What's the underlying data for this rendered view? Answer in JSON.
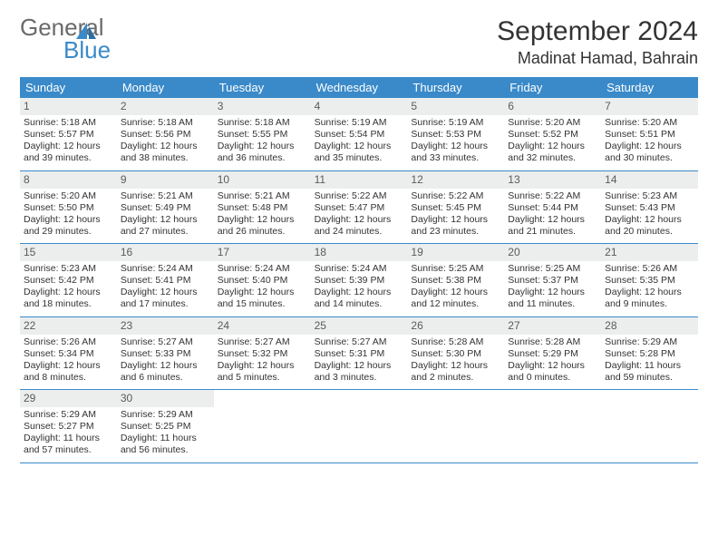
{
  "brand": {
    "line1": "General",
    "line2": "Blue"
  },
  "title": "September 2024",
  "location": "Madinat Hamad, Bahrain",
  "colors": {
    "header_bg": "#3a8ac9",
    "header_fg": "#ffffff",
    "daynum_bg": "#eceeee",
    "text": "#333333",
    "logo_gray": "#6a6a6a",
    "logo_blue": "#3a8ac9",
    "row_border": "#3a8ac9"
  },
  "dow": [
    "Sunday",
    "Monday",
    "Tuesday",
    "Wednesday",
    "Thursday",
    "Friday",
    "Saturday"
  ],
  "days": [
    {
      "n": "1",
      "sunrise": "5:18 AM",
      "sunset": "5:57 PM",
      "daylight": "12 hours and 39 minutes."
    },
    {
      "n": "2",
      "sunrise": "5:18 AM",
      "sunset": "5:56 PM",
      "daylight": "12 hours and 38 minutes."
    },
    {
      "n": "3",
      "sunrise": "5:18 AM",
      "sunset": "5:55 PM",
      "daylight": "12 hours and 36 minutes."
    },
    {
      "n": "4",
      "sunrise": "5:19 AM",
      "sunset": "5:54 PM",
      "daylight": "12 hours and 35 minutes."
    },
    {
      "n": "5",
      "sunrise": "5:19 AM",
      "sunset": "5:53 PM",
      "daylight": "12 hours and 33 minutes."
    },
    {
      "n": "6",
      "sunrise": "5:20 AM",
      "sunset": "5:52 PM",
      "daylight": "12 hours and 32 minutes."
    },
    {
      "n": "7",
      "sunrise": "5:20 AM",
      "sunset": "5:51 PM",
      "daylight": "12 hours and 30 minutes."
    },
    {
      "n": "8",
      "sunrise": "5:20 AM",
      "sunset": "5:50 PM",
      "daylight": "12 hours and 29 minutes."
    },
    {
      "n": "9",
      "sunrise": "5:21 AM",
      "sunset": "5:49 PM",
      "daylight": "12 hours and 27 minutes."
    },
    {
      "n": "10",
      "sunrise": "5:21 AM",
      "sunset": "5:48 PM",
      "daylight": "12 hours and 26 minutes."
    },
    {
      "n": "11",
      "sunrise": "5:22 AM",
      "sunset": "5:47 PM",
      "daylight": "12 hours and 24 minutes."
    },
    {
      "n": "12",
      "sunrise": "5:22 AM",
      "sunset": "5:45 PM",
      "daylight": "12 hours and 23 minutes."
    },
    {
      "n": "13",
      "sunrise": "5:22 AM",
      "sunset": "5:44 PM",
      "daylight": "12 hours and 21 minutes."
    },
    {
      "n": "14",
      "sunrise": "5:23 AM",
      "sunset": "5:43 PM",
      "daylight": "12 hours and 20 minutes."
    },
    {
      "n": "15",
      "sunrise": "5:23 AM",
      "sunset": "5:42 PM",
      "daylight": "12 hours and 18 minutes."
    },
    {
      "n": "16",
      "sunrise": "5:24 AM",
      "sunset": "5:41 PM",
      "daylight": "12 hours and 17 minutes."
    },
    {
      "n": "17",
      "sunrise": "5:24 AM",
      "sunset": "5:40 PM",
      "daylight": "12 hours and 15 minutes."
    },
    {
      "n": "18",
      "sunrise": "5:24 AM",
      "sunset": "5:39 PM",
      "daylight": "12 hours and 14 minutes."
    },
    {
      "n": "19",
      "sunrise": "5:25 AM",
      "sunset": "5:38 PM",
      "daylight": "12 hours and 12 minutes."
    },
    {
      "n": "20",
      "sunrise": "5:25 AM",
      "sunset": "5:37 PM",
      "daylight": "12 hours and 11 minutes."
    },
    {
      "n": "21",
      "sunrise": "5:26 AM",
      "sunset": "5:35 PM",
      "daylight": "12 hours and 9 minutes."
    },
    {
      "n": "22",
      "sunrise": "5:26 AM",
      "sunset": "5:34 PM",
      "daylight": "12 hours and 8 minutes."
    },
    {
      "n": "23",
      "sunrise": "5:27 AM",
      "sunset": "5:33 PM",
      "daylight": "12 hours and 6 minutes."
    },
    {
      "n": "24",
      "sunrise": "5:27 AM",
      "sunset": "5:32 PM",
      "daylight": "12 hours and 5 minutes."
    },
    {
      "n": "25",
      "sunrise": "5:27 AM",
      "sunset": "5:31 PM",
      "daylight": "12 hours and 3 minutes."
    },
    {
      "n": "26",
      "sunrise": "5:28 AM",
      "sunset": "5:30 PM",
      "daylight": "12 hours and 2 minutes."
    },
    {
      "n": "27",
      "sunrise": "5:28 AM",
      "sunset": "5:29 PM",
      "daylight": "12 hours and 0 minutes."
    },
    {
      "n": "28",
      "sunrise": "5:29 AM",
      "sunset": "5:28 PM",
      "daylight": "11 hours and 59 minutes."
    },
    {
      "n": "29",
      "sunrise": "5:29 AM",
      "sunset": "5:27 PM",
      "daylight": "11 hours and 57 minutes."
    },
    {
      "n": "30",
      "sunrise": "5:29 AM",
      "sunset": "5:25 PM",
      "daylight": "11 hours and 56 minutes."
    }
  ],
  "labels": {
    "sunrise": "Sunrise:",
    "sunset": "Sunset:",
    "daylight": "Daylight:"
  },
  "layout": {
    "start_dow": 0,
    "cols": 7
  }
}
